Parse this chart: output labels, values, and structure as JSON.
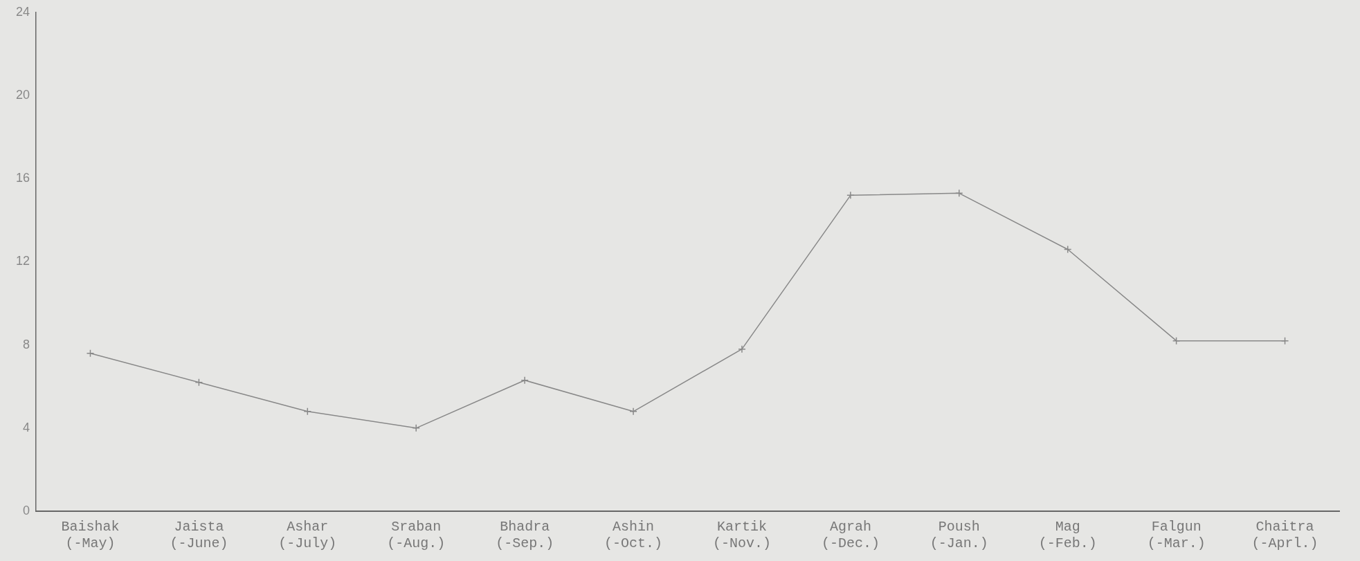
{
  "chart_data": {
    "type": "line",
    "categories": [
      "Baishak\n(-May)",
      "Jaista\n(-June)",
      "Ashar\n(-July)",
      "Sraban\n(-Aug.)",
      "Bhadra\n(-Sep.)",
      "Ashin\n(-Oct.)",
      "Kartik\n(-Nov.)",
      "Agrah\n(-Dec.)",
      "Poush\n(-Jan.)",
      "Mag\n(-Feb.)",
      "Falgun\n(-Mar.)",
      "Chaitra\n(-Aprl.)"
    ],
    "series": [
      {
        "color": "#888888",
        "values": [
          7.6,
          6.2,
          4.8,
          4.0,
          6.3,
          4.8,
          7.8,
          15.2,
          15.3,
          12.6,
          8.2,
          8.2
        ]
      }
    ],
    "ylim": [
      0,
      24
    ],
    "yticks": [
      0,
      4,
      8,
      12,
      16,
      20,
      24
    ],
    "grid": false,
    "legend": false,
    "marker": "cross",
    "line_style": "solid"
  }
}
